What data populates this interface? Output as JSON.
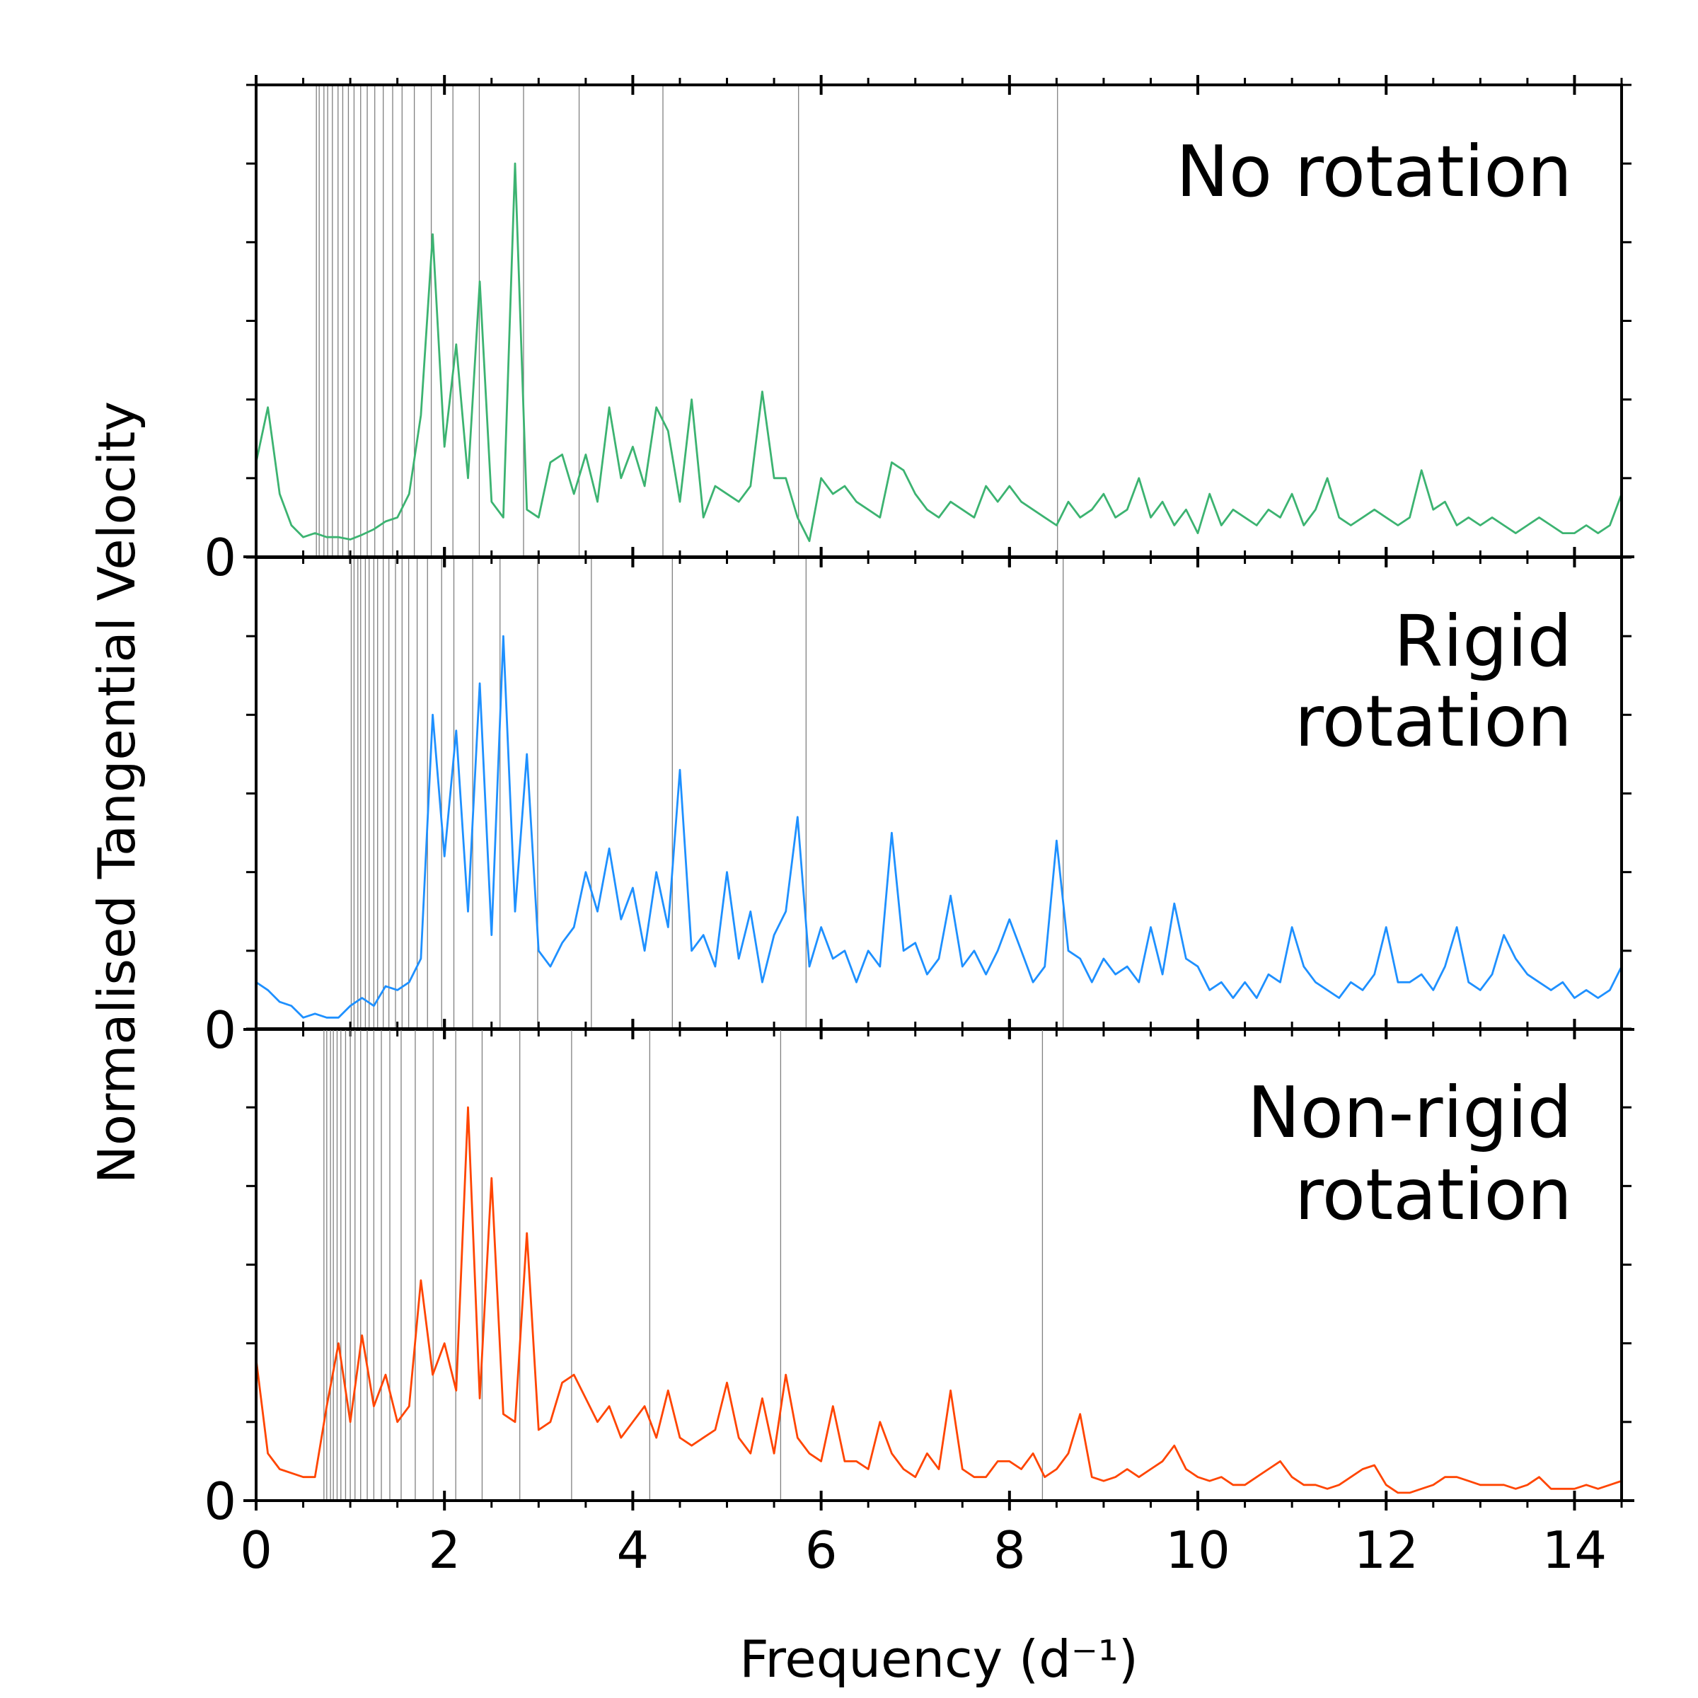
{
  "figure": {
    "ylabel": "Normalised Tangential Velocity",
    "xlabel": "Frequency (d⁻¹)"
  },
  "chart_data": [
    {
      "type": "line",
      "xlim": [
        0,
        14.5
      ],
      "ylim": [
        0,
        6
      ],
      "yticks": [
        0
      ],
      "yminorticks": [
        1,
        2,
        3,
        4,
        5,
        6
      ],
      "xticks": [
        0,
        2,
        4,
        6,
        8,
        10,
        12,
        14
      ],
      "xminorticks": [
        0.5,
        1,
        1.5,
        2.5,
        3,
        3.5,
        4.5,
        5,
        5.5,
        6.5,
        7,
        7.5,
        8.5,
        9,
        9.5,
        10.5,
        11,
        11.5,
        12.5,
        13,
        13.5,
        14.5
      ],
      "xtick_labels": false,
      "label_wrap": false,
      "vlines": [
        0.64,
        0.67,
        0.72,
        0.76,
        0.81,
        0.87,
        0.92,
        0.98,
        1.04,
        1.11,
        1.18,
        1.26,
        1.35,
        1.45,
        1.55,
        1.68,
        1.86,
        2.09,
        2.37,
        2.84,
        3.43,
        4.32,
        5.76,
        8.51
      ],
      "vline_color": "#808080",
      "x": [
        0,
        0.125,
        0.25,
        0.375,
        0.5,
        0.625,
        0.75,
        0.875,
        1,
        1.125,
        1.25,
        1.375,
        1.5,
        1.625,
        1.75,
        1.875,
        2,
        2.125,
        2.25,
        2.375,
        2.5,
        2.625,
        2.75,
        2.875,
        3,
        3.125,
        3.25,
        3.375,
        3.5,
        3.625,
        3.75,
        3.875,
        4,
        4.125,
        4.25,
        4.375,
        4.5,
        4.625,
        4.75,
        4.875,
        5,
        5.125,
        5.25,
        5.375,
        5.5,
        5.625,
        5.75,
        5.875,
        6,
        6.125,
        6.25,
        6.375,
        6.5,
        6.625,
        6.75,
        6.875,
        7,
        7.125,
        7.25,
        7.375,
        7.5,
        7.625,
        7.75,
        7.875,
        8,
        8.125,
        8.25,
        8.375,
        8.5,
        8.625,
        8.75,
        8.875,
        9,
        9.125,
        9.25,
        9.375,
        9.5,
        9.625,
        9.75,
        9.875,
        10,
        10.125,
        10.25,
        10.375,
        10.5,
        10.625,
        10.75,
        10.875,
        11,
        11.125,
        11.25,
        11.375,
        11.5,
        11.625,
        11.75,
        11.875,
        12,
        12.125,
        12.25,
        12.375,
        12.5,
        12.625,
        12.75,
        12.875,
        13,
        13.125,
        13.25,
        13.375,
        13.5,
        13.625,
        13.75,
        13.875,
        14,
        14.125,
        14.25,
        14.375,
        14.5
      ],
      "series": [
        {
          "name": "No rotation",
          "color": "#3cb371",
          "values": [
            1.2,
            1.9,
            0.8,
            0.4,
            0.25,
            0.3,
            0.25,
            0.25,
            0.22,
            0.28,
            0.35,
            0.45,
            0.5,
            0.8,
            1.8,
            4.1,
            1.4,
            2.7,
            1.0,
            3.5,
            0.7,
            0.5,
            5.0,
            0.6,
            0.5,
            1.2,
            1.3,
            0.8,
            1.3,
            0.7,
            1.9,
            1.0,
            1.4,
            0.9,
            1.9,
            1.6,
            0.7,
            2.0,
            0.5,
            0.9,
            0.8,
            0.7,
            0.9,
            2.1,
            1.0,
            1.0,
            0.5,
            0.2,
            1.0,
            0.8,
            0.9,
            0.7,
            0.6,
            0.5,
            1.2,
            1.1,
            0.8,
            0.6,
            0.5,
            0.7,
            0.6,
            0.5,
            0.9,
            0.7,
            0.9,
            0.7,
            0.6,
            0.5,
            0.4,
            0.7,
            0.5,
            0.6,
            0.8,
            0.5,
            0.6,
            1.0,
            0.5,
            0.7,
            0.4,
            0.6,
            0.3,
            0.8,
            0.4,
            0.6,
            0.5,
            0.4,
            0.6,
            0.5,
            0.8,
            0.4,
            0.6,
            1.0,
            0.5,
            0.4,
            0.5,
            0.6,
            0.5,
            0.4,
            0.5,
            1.1,
            0.6,
            0.7,
            0.4,
            0.5,
            0.4,
            0.5,
            0.4,
            0.3,
            0.4,
            0.5,
            0.4,
            0.3,
            0.3,
            0.4,
            0.3,
            0.4,
            0.8
          ]
        }
      ]
    },
    {
      "type": "line",
      "xlim": [
        0,
        14.5
      ],
      "ylim": [
        0,
        6
      ],
      "yticks": [
        0
      ],
      "yminorticks": [
        1,
        2,
        3,
        4,
        5,
        6
      ],
      "xticks": [
        0,
        2,
        4,
        6,
        8,
        10,
        12,
        14
      ],
      "xminorticks": [
        0.5,
        1,
        1.5,
        2.5,
        3,
        3.5,
        4.5,
        5,
        5.5,
        6.5,
        7,
        7.5,
        8.5,
        9,
        9.5,
        10.5,
        11,
        11.5,
        12.5,
        13,
        13.5,
        14.5
      ],
      "xtick_labels": false,
      "label_wrap": true,
      "vlines": [
        1.01,
        1.04,
        1.08,
        1.11,
        1.16,
        1.2,
        1.25,
        1.29,
        1.35,
        1.41,
        1.48,
        1.55,
        1.62,
        1.71,
        1.82,
        1.97,
        2.1,
        2.3,
        2.59,
        2.99,
        3.56,
        4.42,
        5.84,
        8.57
      ],
      "vline_color": "#808080",
      "x": [
        0,
        0.125,
        0.25,
        0.375,
        0.5,
        0.625,
        0.75,
        0.875,
        1,
        1.125,
        1.25,
        1.375,
        1.5,
        1.625,
        1.75,
        1.875,
        2,
        2.125,
        2.25,
        2.375,
        2.5,
        2.625,
        2.75,
        2.875,
        3,
        3.125,
        3.25,
        3.375,
        3.5,
        3.625,
        3.75,
        3.875,
        4,
        4.125,
        4.25,
        4.375,
        4.5,
        4.625,
        4.75,
        4.875,
        5,
        5.125,
        5.25,
        5.375,
        5.5,
        5.625,
        5.75,
        5.875,
        6,
        6.125,
        6.25,
        6.375,
        6.5,
        6.625,
        6.75,
        6.875,
        7,
        7.125,
        7.25,
        7.375,
        7.5,
        7.625,
        7.75,
        7.875,
        8,
        8.125,
        8.25,
        8.375,
        8.5,
        8.625,
        8.75,
        8.875,
        9,
        9.125,
        9.25,
        9.375,
        9.5,
        9.625,
        9.75,
        9.875,
        10,
        10.125,
        10.25,
        10.375,
        10.5,
        10.625,
        10.75,
        10.875,
        11,
        11.125,
        11.25,
        11.375,
        11.5,
        11.625,
        11.75,
        11.875,
        12,
        12.125,
        12.25,
        12.375,
        12.5,
        12.625,
        12.75,
        12.875,
        13,
        13.125,
        13.25,
        13.375,
        13.5,
        13.625,
        13.75,
        13.875,
        14,
        14.125,
        14.25,
        14.375,
        14.5
      ],
      "series": [
        {
          "name": "Rigid rotation",
          "color": "#1e90ff",
          "values": [
            0.6,
            0.5,
            0.35,
            0.3,
            0.15,
            0.2,
            0.15,
            0.15,
            0.3,
            0.4,
            0.3,
            0.55,
            0.5,
            0.6,
            0.9,
            4.0,
            2.2,
            3.8,
            1.5,
            4.4,
            1.2,
            5.0,
            1.5,
            3.5,
            1.0,
            0.8,
            1.1,
            1.3,
            2.0,
            1.5,
            2.3,
            1.4,
            1.8,
            1.0,
            2.0,
            1.3,
            3.3,
            1.0,
            1.2,
            0.8,
            2.0,
            0.9,
            1.5,
            0.6,
            1.2,
            1.5,
            2.7,
            0.8,
            1.3,
            0.9,
            1.0,
            0.6,
            1.0,
            0.8,
            2.5,
            1.0,
            1.1,
            0.7,
            0.9,
            1.7,
            0.8,
            1.0,
            0.7,
            1.0,
            1.4,
            1.0,
            0.6,
            0.8,
            2.4,
            1.0,
            0.9,
            0.6,
            0.9,
            0.7,
            0.8,
            0.6,
            1.3,
            0.7,
            1.6,
            0.9,
            0.8,
            0.5,
            0.6,
            0.4,
            0.6,
            0.4,
            0.7,
            0.6,
            1.3,
            0.8,
            0.6,
            0.5,
            0.4,
            0.6,
            0.5,
            0.7,
            1.3,
            0.6,
            0.6,
            0.7,
            0.5,
            0.8,
            1.3,
            0.6,
            0.5,
            0.7,
            1.2,
            0.9,
            0.7,
            0.6,
            0.5,
            0.6,
            0.4,
            0.5,
            0.4,
            0.5,
            0.8
          ]
        }
      ]
    },
    {
      "type": "line",
      "xlim": [
        0,
        14.5
      ],
      "ylim": [
        0,
        6
      ],
      "yticks": [
        0
      ],
      "yminorticks": [
        1,
        2,
        3,
        4,
        5,
        6
      ],
      "xticks": [
        0,
        2,
        4,
        6,
        8,
        10,
        12,
        14
      ],
      "xminorticks": [
        0.5,
        1,
        1.5,
        2.5,
        3,
        3.5,
        4.5,
        5,
        5.5,
        6.5,
        7,
        7.5,
        8.5,
        9,
        9.5,
        10.5,
        11,
        11.5,
        12.5,
        13,
        13.5,
        14.5
      ],
      "xtick_labels": true,
      "label_wrap": true,
      "vlines": [
        0.72,
        0.75,
        0.79,
        0.82,
        0.86,
        0.9,
        0.95,
        1.0,
        1.05,
        1.11,
        1.18,
        1.25,
        1.33,
        1.42,
        1.54,
        1.69,
        1.88,
        2.12,
        2.4,
        2.8,
        3.35,
        4.18,
        5.57,
        8.35
      ],
      "vline_color": "#808080",
      "x": [
        0,
        0.125,
        0.25,
        0.375,
        0.5,
        0.625,
        0.75,
        0.875,
        1,
        1.125,
        1.25,
        1.375,
        1.5,
        1.625,
        1.75,
        1.875,
        2,
        2.125,
        2.25,
        2.375,
        2.5,
        2.625,
        2.75,
        2.875,
        3,
        3.125,
        3.25,
        3.375,
        3.5,
        3.625,
        3.75,
        3.875,
        4,
        4.125,
        4.25,
        4.375,
        4.5,
        4.625,
        4.75,
        4.875,
        5,
        5.125,
        5.25,
        5.375,
        5.5,
        5.625,
        5.75,
        5.875,
        6,
        6.125,
        6.25,
        6.375,
        6.5,
        6.625,
        6.75,
        6.875,
        7,
        7.125,
        7.25,
        7.375,
        7.5,
        7.625,
        7.75,
        7.875,
        8,
        8.125,
        8.25,
        8.375,
        8.5,
        8.625,
        8.75,
        8.875,
        9,
        9.125,
        9.25,
        9.375,
        9.5,
        9.625,
        9.75,
        9.875,
        10,
        10.125,
        10.25,
        10.375,
        10.5,
        10.625,
        10.75,
        10.875,
        11,
        11.125,
        11.25,
        11.375,
        11.5,
        11.625,
        11.75,
        11.875,
        12,
        12.125,
        12.25,
        12.375,
        12.5,
        12.625,
        12.75,
        12.875,
        13,
        13.125,
        13.25,
        13.375,
        13.5,
        13.625,
        13.75,
        13.875,
        14,
        14.125,
        14.25,
        14.375,
        14.5
      ],
      "series": [
        {
          "name": "Non-rigid rotation",
          "color": "#ff4500",
          "values": [
            1.8,
            0.6,
            0.4,
            0.35,
            0.3,
            0.3,
            1.2,
            2.0,
            1.0,
            2.1,
            1.2,
            1.6,
            1.0,
            1.2,
            2.8,
            1.6,
            2.0,
            1.4,
            5.0,
            1.3,
            4.1,
            1.1,
            1.0,
            3.4,
            0.9,
            1.0,
            1.5,
            1.6,
            1.3,
            1.0,
            1.2,
            0.8,
            1.0,
            1.2,
            0.8,
            1.4,
            0.8,
            0.7,
            0.8,
            0.9,
            1.5,
            0.8,
            0.6,
            1.3,
            0.6,
            1.6,
            0.8,
            0.6,
            0.5,
            1.2,
            0.5,
            0.5,
            0.4,
            1.0,
            0.6,
            0.4,
            0.3,
            0.6,
            0.4,
            1.4,
            0.4,
            0.3,
            0.3,
            0.5,
            0.5,
            0.4,
            0.6,
            0.3,
            0.4,
            0.6,
            1.1,
            0.3,
            0.25,
            0.3,
            0.4,
            0.3,
            0.4,
            0.5,
            0.7,
            0.4,
            0.3,
            0.25,
            0.3,
            0.2,
            0.2,
            0.3,
            0.4,
            0.5,
            0.3,
            0.2,
            0.2,
            0.15,
            0.2,
            0.3,
            0.4,
            0.45,
            0.2,
            0.1,
            0.1,
            0.15,
            0.2,
            0.3,
            0.3,
            0.25,
            0.2,
            0.2,
            0.2,
            0.15,
            0.2,
            0.3,
            0.15,
            0.15,
            0.15,
            0.2,
            0.15,
            0.2,
            0.25
          ]
        }
      ]
    }
  ]
}
